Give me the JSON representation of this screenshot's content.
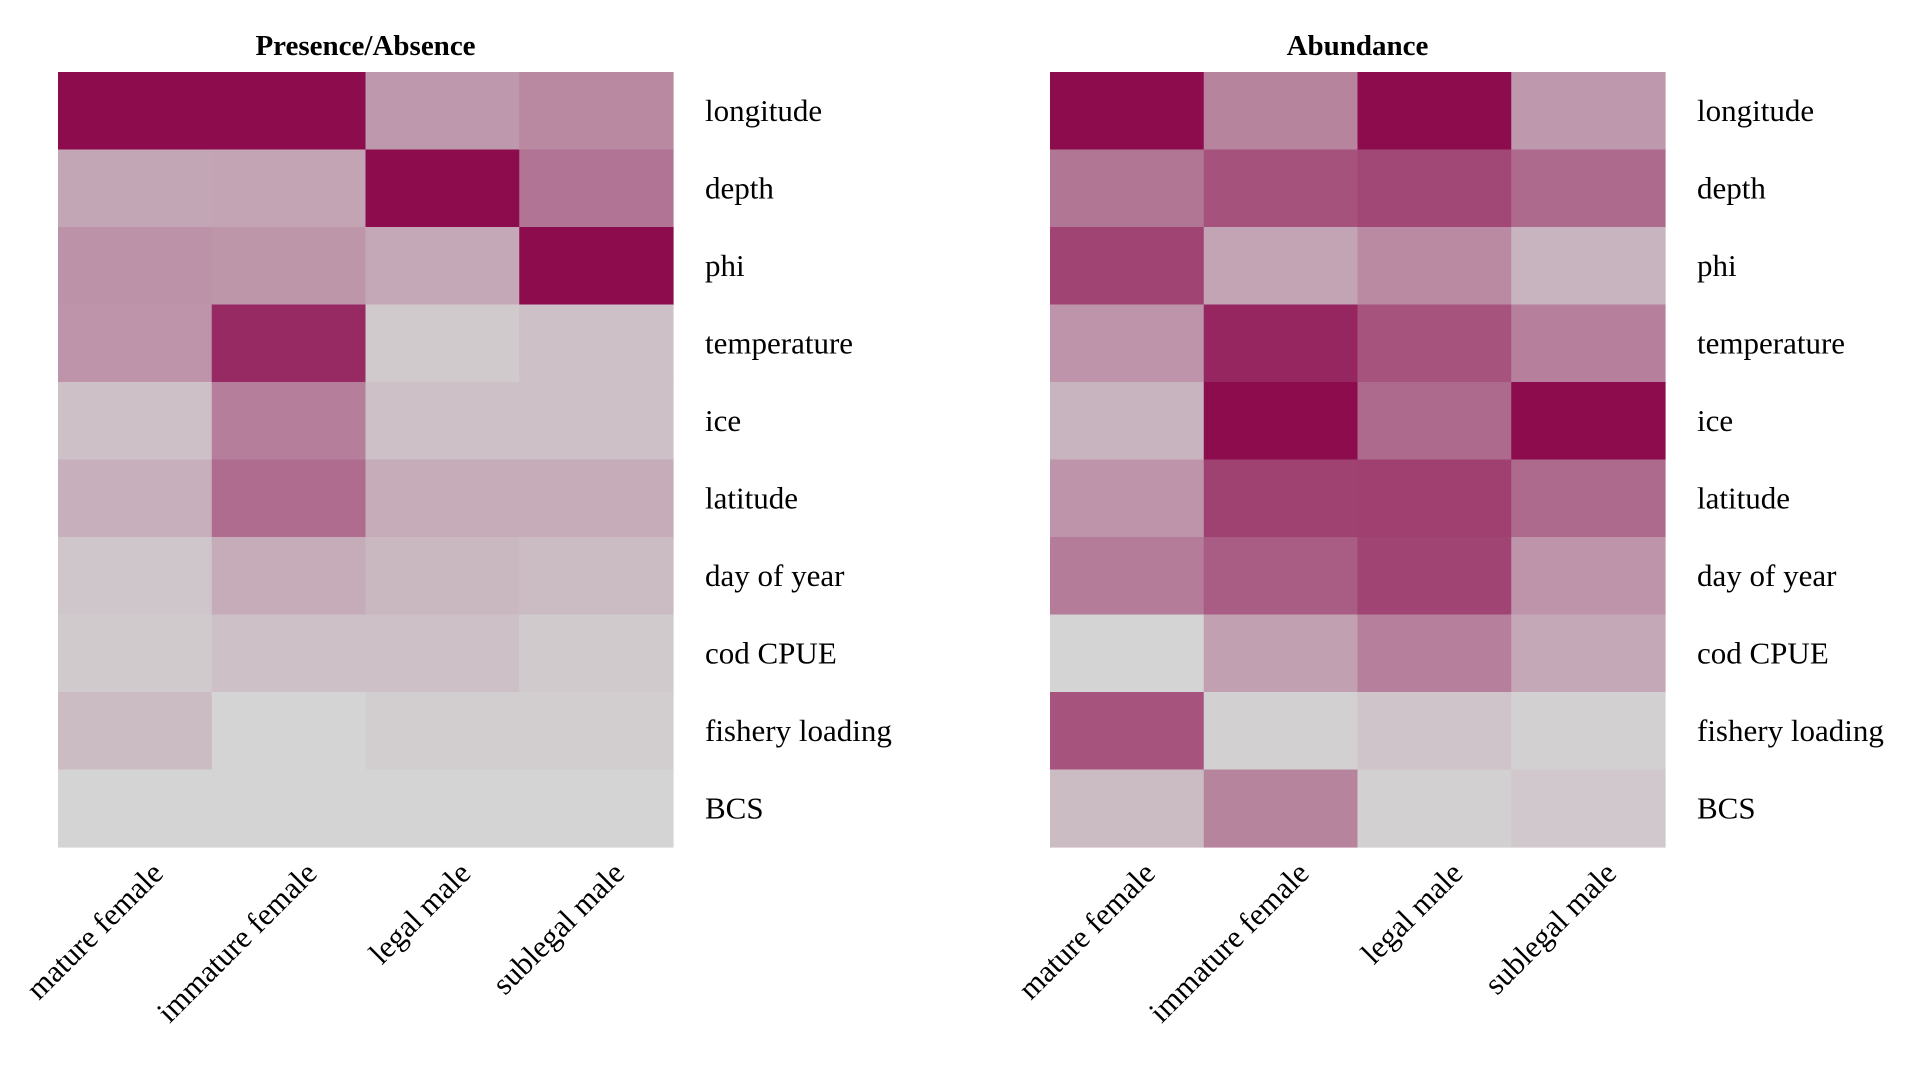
{
  "chart_data": [
    {
      "type": "heatmap",
      "title": "Presence/Absence",
      "rows": [
        "longitude",
        "depth",
        "phi",
        "temperature",
        "ice",
        "latitude",
        "day of year",
        "cod CPUE",
        "fishery loading",
        "BCS"
      ],
      "columns": [
        "mature female",
        "immature female",
        "legal male",
        "sublegal male"
      ],
      "values": [
        [
          1.0,
          1.0,
          0.3,
          0.38
        ],
        [
          0.23,
          0.24,
          1.0,
          0.48
        ],
        [
          0.33,
          0.31,
          0.22,
          1.0
        ],
        [
          0.32,
          0.85,
          0.05,
          0.1
        ],
        [
          0.1,
          0.43,
          0.1,
          0.1
        ],
        [
          0.18,
          0.52,
          0.2,
          0.2
        ],
        [
          0.07,
          0.2,
          0.14,
          0.12
        ],
        [
          0.05,
          0.1,
          0.1,
          0.05
        ],
        [
          0.12,
          0.0,
          0.03,
          0.03
        ],
        [
          0.0,
          0.0,
          0.0,
          0.0
        ]
      ],
      "color_low": "#d4d4d4",
      "color_high": "#8c0c4e",
      "grid": false,
      "legend": "none"
    },
    {
      "type": "heatmap",
      "title": "Abundance",
      "rows": [
        "longitude",
        "depth",
        "phi",
        "temperature",
        "ice",
        "latitude",
        "day of year",
        "cod CPUE",
        "fishery loading",
        "BCS"
      ],
      "columns": [
        "mature female",
        "immature female",
        "legal male",
        "sublegal male"
      ],
      "values": [
        [
          1.0,
          0.4,
          1.0,
          0.3
        ],
        [
          0.47,
          0.65,
          0.7,
          0.53
        ],
        [
          0.72,
          0.24,
          0.37,
          0.16
        ],
        [
          0.32,
          0.87,
          0.64,
          0.42
        ],
        [
          0.16,
          1.0,
          0.53,
          1.0
        ],
        [
          0.32,
          0.73,
          0.74,
          0.53
        ],
        [
          0.44,
          0.6,
          0.72,
          0.32
        ],
        [
          0.0,
          0.26,
          0.42,
          0.22
        ],
        [
          0.64,
          0.02,
          0.08,
          0.02
        ],
        [
          0.12,
          0.4,
          0.02,
          0.06
        ]
      ],
      "color_low": "#d4d4d4",
      "color_high": "#8c0c4e",
      "grid": false,
      "legend": "none"
    }
  ]
}
